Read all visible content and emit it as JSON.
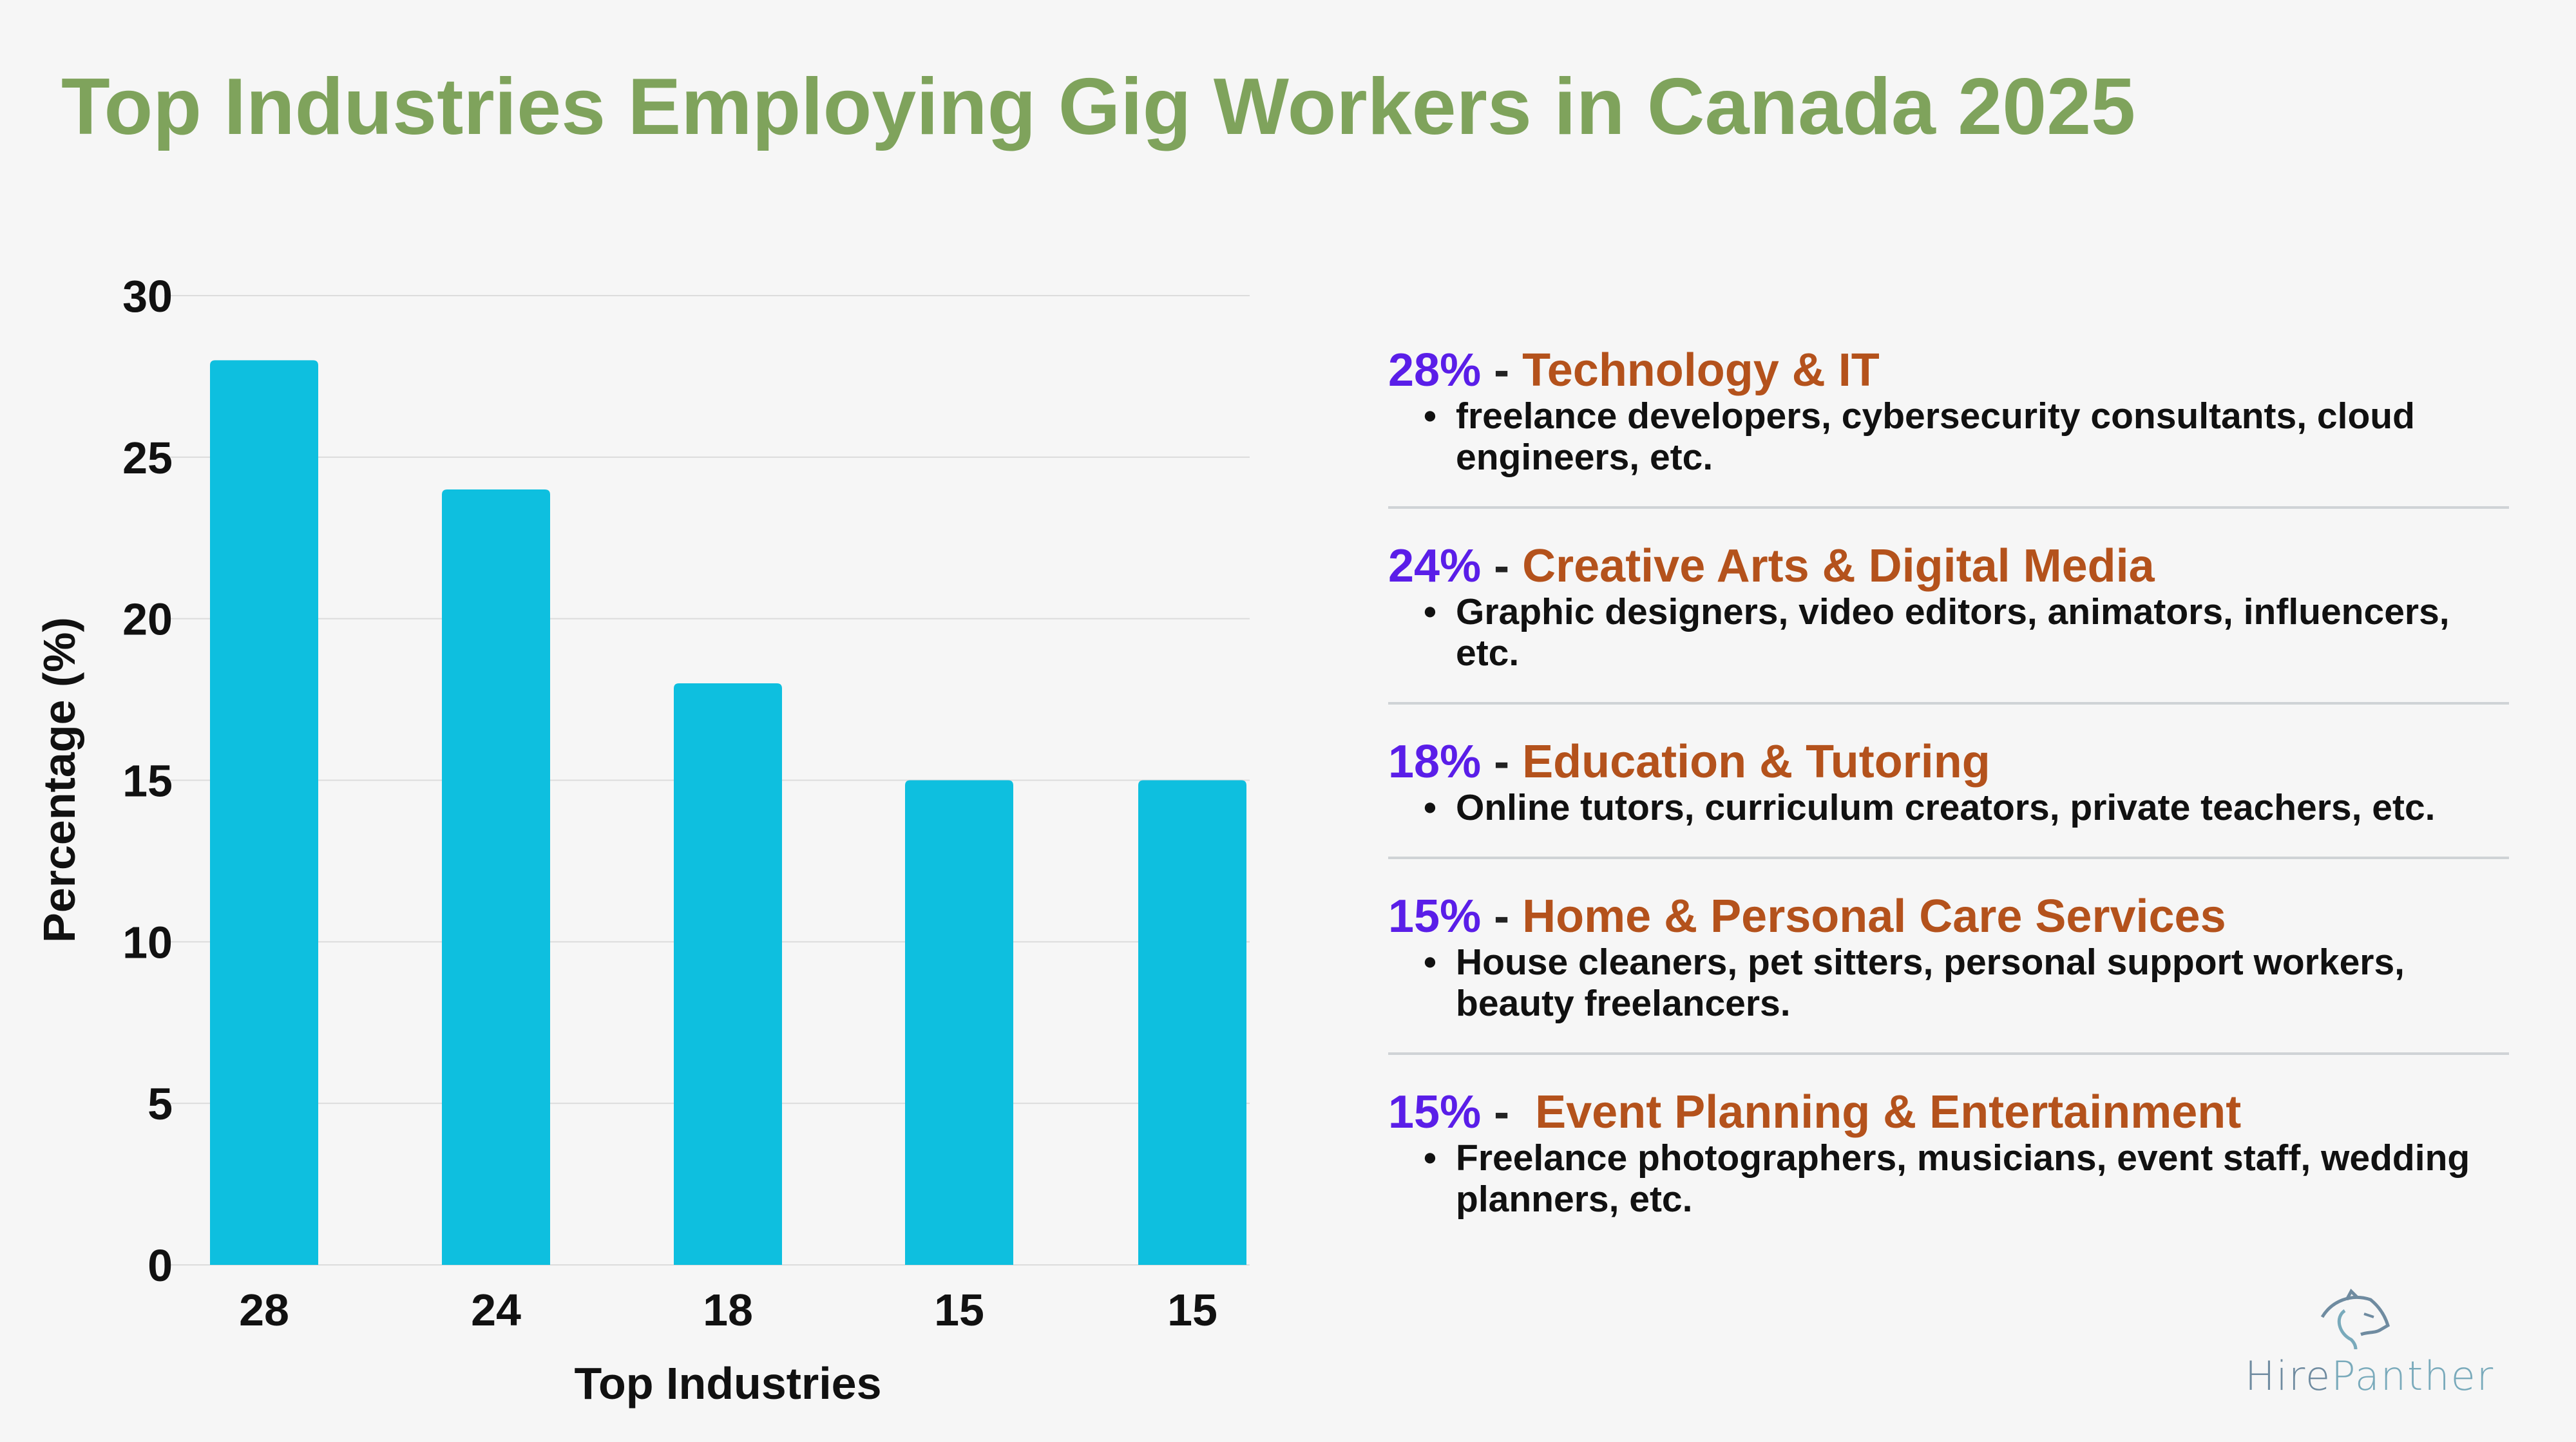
{
  "title": "Top Industries Employing Gig Workers in Canada 2025",
  "chart_data": {
    "type": "bar",
    "categories": [
      "28",
      "24",
      "18",
      "15",
      "15"
    ],
    "values": [
      28,
      24,
      18,
      15,
      15
    ],
    "xlabel": "Top Industries",
    "ylabel": "Percentage (%)",
    "ylim": [
      0,
      30
    ],
    "yticks": [
      0,
      5,
      10,
      15,
      20,
      25,
      30
    ],
    "grid": true,
    "bar_color": "#0ebfdf"
  },
  "legend_items": [
    {
      "percent": "28%",
      "sep": " - ",
      "category": "Technology & IT",
      "description": "freelance developers, cybersecurity consultants, cloud engineers, etc."
    },
    {
      "percent": "24%",
      "sep": " - ",
      "category": "Creative Arts & Digital Media",
      "description": "Graphic designers, video editors, animators, influencers, etc."
    },
    {
      "percent": "18%",
      "sep": " - ",
      "category": "Education & Tutoring",
      "description": "Online tutors, curriculum creators, private teachers, etc."
    },
    {
      "percent": "15%",
      "sep": " - ",
      "category": "Home & Personal Care Services",
      "description": "House cleaners, pet sitters, personal support workers, beauty freelancers."
    },
    {
      "percent": "15%",
      "sep": " -  ",
      "category": "Event Planning & Entertainment",
      "description": "Freelance photographers, musicians, event staff, wedding planners, etc."
    }
  ],
  "logo": {
    "text_part1": "Hire",
    "text_part2": "Panther",
    "icon": "panther-head-icon"
  },
  "colors": {
    "title": "#7fa35c",
    "percent": "#5a1ee8",
    "category": "#b4521c",
    "bar": "#0ebfdf"
  }
}
